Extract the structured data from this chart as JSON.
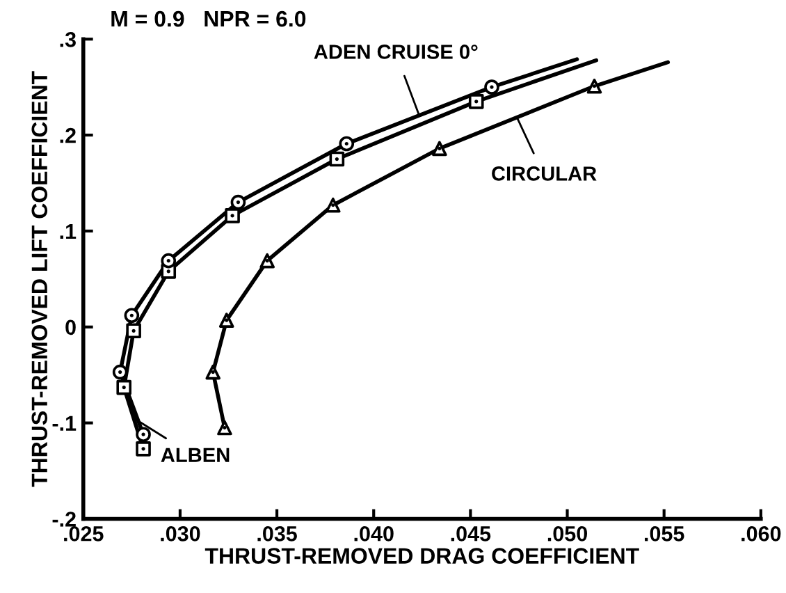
{
  "chart_data": {
    "type": "line",
    "title": "M = 0.9   NPR = 6.0",
    "xlabel": "THRUST-REMOVED DRAG COEFFICIENT",
    "ylabel": "THRUST-REMOVED LIFT COEFFICIENT",
    "xlim": [
      0.025,
      0.06
    ],
    "ylim": [
      -0.2,
      0.3
    ],
    "xticks": [
      {
        "value": 0.025,
        "label": ".025"
      },
      {
        "value": 0.03,
        "label": ".030"
      },
      {
        "value": 0.035,
        "label": ".035"
      },
      {
        "value": 0.04,
        "label": ".040"
      },
      {
        "value": 0.045,
        "label": ".045"
      },
      {
        "value": 0.05,
        "label": ".050"
      },
      {
        "value": 0.055,
        "label": ".055"
      },
      {
        "value": 0.06,
        "label": ".060"
      }
    ],
    "yticks": [
      {
        "value": -0.2,
        "label": "-.2"
      },
      {
        "value": -0.1,
        "label": "-.1"
      },
      0,
      {
        "value": 0.1,
        "label": ".1"
      },
      {
        "value": 0.2,
        "label": ".2"
      },
      {
        "value": 0.3,
        "label": ".3"
      }
    ],
    "grid": false,
    "legend": "center",
    "series": [
      {
        "name": "ADEN CRUISE 0°",
        "color": "#000000",
        "marker": "circle",
        "x": [
          0.0281,
          0.0269,
          0.0275,
          0.0294,
          0.033,
          0.0386,
          0.0461
        ],
        "values": [
          -0.112,
          -0.047,
          0.012,
          0.069,
          0.13,
          0.191,
          0.25
        ]
      },
      {
        "name": "ALBEN",
        "color": "#000000",
        "marker": "square",
        "x": [
          0.0281,
          0.0271,
          0.0276,
          0.0294,
          0.0327,
          0.0381,
          0.0453
        ],
        "values": [
          -0.127,
          -0.063,
          -0.004,
          0.058,
          0.116,
          0.175,
          0.235
        ]
      },
      {
        "name": "CIRCULAR",
        "color": "#000000",
        "marker": "triangle",
        "x": [
          0.0323,
          0.0317,
          0.0324,
          0.0345,
          0.0379,
          0.0434,
          0.0514
        ],
        "values": [
          -0.105,
          -0.047,
          0.007,
          0.069,
          0.127,
          0.186,
          0.251
        ]
      },
      {
        "color": "#000000",
        "x": [
          0.0461,
          0.0505
        ],
        "values": [
          0.25,
          0.279
        ]
      },
      {
        "color": "#000000",
        "x": [
          0.0453,
          0.0515
        ],
        "values": [
          0.235,
          0.278
        ]
      },
      {
        "color": "#000000",
        "x": [
          0.0514,
          0.0552
        ],
        "values": [
          0.251,
          0.276
        ]
      }
    ]
  }
}
